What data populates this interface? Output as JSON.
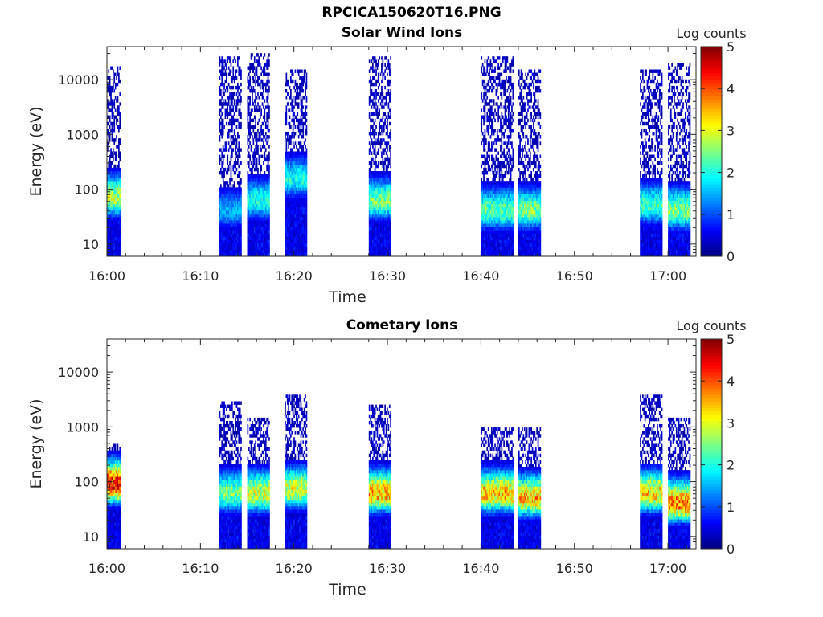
{
  "figure": {
    "title": "RPCICA150620T16.PNG"
  },
  "chart_data": [
    {
      "type": "heatmap",
      "title": "Solar Wind Ions",
      "xlabel": "Time",
      "ylabel": "Energy (eV)",
      "y_scale": "log",
      "xlim": [
        "16:00",
        "17:03"
      ],
      "ylim": [
        6,
        40000
      ],
      "x_ticks": [
        "16:00",
        "16:10",
        "16:20",
        "16:30",
        "16:40",
        "16:50",
        "17:00"
      ],
      "y_ticks": [
        "10",
        "100",
        "1000",
        "10000"
      ],
      "colorbar": {
        "label": "Log counts",
        "min": 0,
        "max": 5,
        "ticks": [
          "0",
          "1",
          "2",
          "3",
          "4",
          "5"
        ],
        "colormap": "jet"
      },
      "bursts": [
        {
          "start": "16:00",
          "end": "16:01",
          "peak_energy_eV": 70,
          "peak_log_counts": 2.8,
          "max_energy_eV": 18000
        },
        {
          "start": "16:12",
          "end": "16:14",
          "peak_energy_eV": 40,
          "peak_log_counts": 1.5,
          "max_energy_eV": 25000
        },
        {
          "start": "16:15",
          "end": "16:17",
          "peak_energy_eV": 60,
          "peak_log_counts": 2.0,
          "max_energy_eV": 30000
        },
        {
          "start": "16:19",
          "end": "16:21",
          "peak_energy_eV": 150,
          "peak_log_counts": 2.0,
          "max_energy_eV": 15000
        },
        {
          "start": "16:28",
          "end": "16:30",
          "peak_energy_eV": 60,
          "peak_log_counts": 2.5,
          "max_energy_eV": 25000
        },
        {
          "start": "16:40",
          "end": "16:43",
          "peak_energy_eV": 40,
          "peak_log_counts": 2.4,
          "max_energy_eV": 25000
        },
        {
          "start": "16:44",
          "end": "16:46",
          "peak_energy_eV": 40,
          "peak_log_counts": 2.5,
          "max_energy_eV": 15000
        },
        {
          "start": "16:57",
          "end": "16:59",
          "peak_energy_eV": 50,
          "peak_log_counts": 2.2,
          "max_energy_eV": 15000
        },
        {
          "start": "17:00",
          "end": "17:02",
          "peak_energy_eV": 40,
          "peak_log_counts": 2.6,
          "max_energy_eV": 20000
        }
      ]
    },
    {
      "type": "heatmap",
      "title": "Cometary Ions",
      "xlabel": "Time",
      "ylabel": "Energy (eV)",
      "y_scale": "log",
      "xlim": [
        "16:00",
        "17:03"
      ],
      "ylim": [
        6,
        40000
      ],
      "x_ticks": [
        "16:00",
        "16:10",
        "16:20",
        "16:30",
        "16:40",
        "16:50",
        "17:00"
      ],
      "y_ticks": [
        "10",
        "100",
        "1000",
        "10000"
      ],
      "colorbar": {
        "label": "Log counts",
        "min": 0,
        "max": 5,
        "ticks": [
          "0",
          "1",
          "2",
          "3",
          "4",
          "5"
        ],
        "colormap": "jet"
      },
      "bursts": [
        {
          "start": "16:00",
          "end": "16:01",
          "peak_energy_eV": 90,
          "peak_log_counts": 4.5,
          "max_energy_eV": 500
        },
        {
          "start": "16:12",
          "end": "16:14",
          "peak_energy_eV": 60,
          "peak_log_counts": 2.5,
          "max_energy_eV": 3000
        },
        {
          "start": "16:15",
          "end": "16:17",
          "peak_energy_eV": 60,
          "peak_log_counts": 3.0,
          "max_energy_eV": 1500
        },
        {
          "start": "16:19",
          "end": "16:21",
          "peak_energy_eV": 70,
          "peak_log_counts": 3.0,
          "max_energy_eV": 4000
        },
        {
          "start": "16:28",
          "end": "16:30",
          "peak_energy_eV": 60,
          "peak_log_counts": 3.6,
          "max_energy_eV": 2500
        },
        {
          "start": "16:40",
          "end": "16:43",
          "peak_energy_eV": 60,
          "peak_log_counts": 3.5,
          "max_energy_eV": 1000
        },
        {
          "start": "16:44",
          "end": "16:46",
          "peak_energy_eV": 50,
          "peak_log_counts": 3.5,
          "max_energy_eV": 1000
        },
        {
          "start": "16:57",
          "end": "16:59",
          "peak_energy_eV": 60,
          "peak_log_counts": 3.3,
          "max_energy_eV": 4000
        },
        {
          "start": "17:00",
          "end": "17:02",
          "peak_energy_eV": 40,
          "peak_log_counts": 3.8,
          "max_energy_eV": 1500
        }
      ]
    }
  ]
}
